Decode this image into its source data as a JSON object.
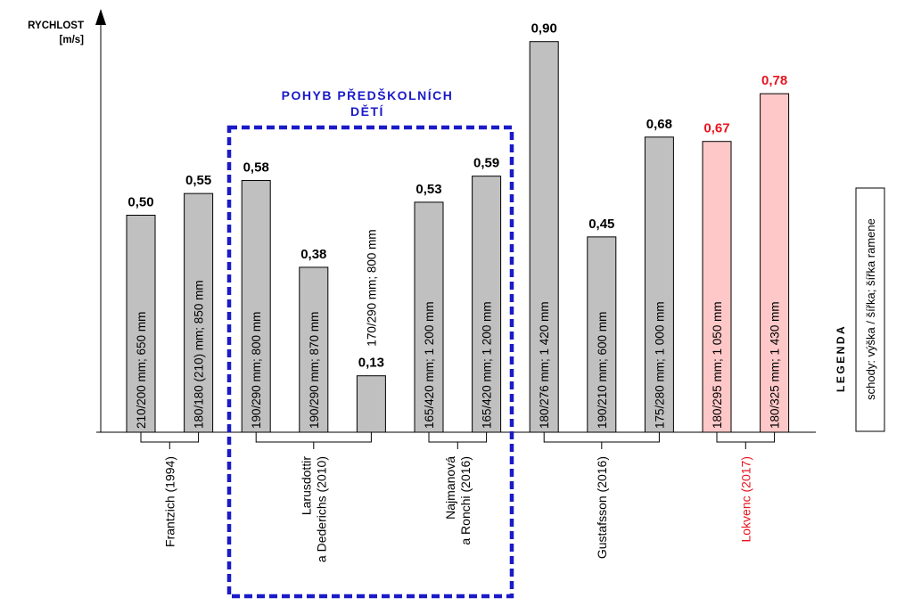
{
  "chart_data": {
    "type": "bar",
    "y_axis_title": "RYCHLOST",
    "y_axis_unit": "[m/s]",
    "ylim": [
      0,
      1.0
    ],
    "grid": false,
    "bars": [
      {
        "value": 0.5,
        "value_label": "0,50",
        "inner_label": "210/200 mm; 650 mm",
        "group": 0,
        "highlight": false
      },
      {
        "value": 0.55,
        "value_label": "0,55",
        "inner_label": "180/180 (210) mm; 850 mm",
        "group": 0,
        "highlight": false
      },
      {
        "value": 0.58,
        "value_label": "0,58",
        "inner_label": "190/290 mm; 800 mm",
        "group": 1,
        "highlight": false
      },
      {
        "value": 0.38,
        "value_label": "0,38",
        "inner_label": "190/290 mm; 870 mm",
        "group": 1,
        "highlight": false
      },
      {
        "value": 0.13,
        "value_label": "0,13",
        "inner_label": "170/290 mm; 800 mm",
        "group": 1,
        "highlight": false,
        "label_outside": true
      },
      {
        "value": 0.53,
        "value_label": "0,53",
        "inner_label": "165/420 mm; 1 200 mm",
        "group": 2,
        "highlight": false
      },
      {
        "value": 0.59,
        "value_label": "0,59",
        "inner_label": "165/420 mm; 1 200 mm",
        "group": 2,
        "highlight": false
      },
      {
        "value": 0.9,
        "value_label": "0,90",
        "inner_label": "180/276 mm; 1 420 mm",
        "group": 3,
        "highlight": false
      },
      {
        "value": 0.45,
        "value_label": "0,45",
        "inner_label": "190/210 mm; 600 mm",
        "group": 3,
        "highlight": false
      },
      {
        "value": 0.68,
        "value_label": "0,68",
        "inner_label": "175/280 mm; 1 000 mm",
        "group": 3,
        "highlight": false
      },
      {
        "value": 0.67,
        "value_label": "0,67",
        "inner_label": "180/295 mm; 1 050 mm",
        "group": 4,
        "highlight": true
      },
      {
        "value": 0.78,
        "value_label": "0,78",
        "inner_label": "180/325 mm; 1 430 mm",
        "group": 4,
        "highlight": true
      }
    ],
    "groups": [
      {
        "lines": [
          "Frantzich (1994)"
        ],
        "highlight": false
      },
      {
        "lines": [
          "Larusdottir",
          "a Dederichs (2010)"
        ],
        "highlight": false
      },
      {
        "lines": [
          "Najmanová",
          "a Ronchi (2016)"
        ],
        "highlight": false
      },
      {
        "lines": [
          "Gustafsson (2016)"
        ],
        "highlight": false
      },
      {
        "lines": [
          "Lokvenc (2017)"
        ],
        "highlight": true
      }
    ],
    "highlight_box": {
      "title_lines": [
        "POHYB PŘEDŠKOLNÍCH",
        "DĚTÍ"
      ]
    },
    "legend": {
      "title": "LEGENDA",
      "text": "schody: výška / šířka; šířka ramene"
    },
    "colors": {
      "bar": "#c0c0c0",
      "bar_highlight": "#ffc8c8",
      "text_highlight": "#e8141e",
      "box": "#1a1ac8",
      "text": "#000000"
    }
  }
}
